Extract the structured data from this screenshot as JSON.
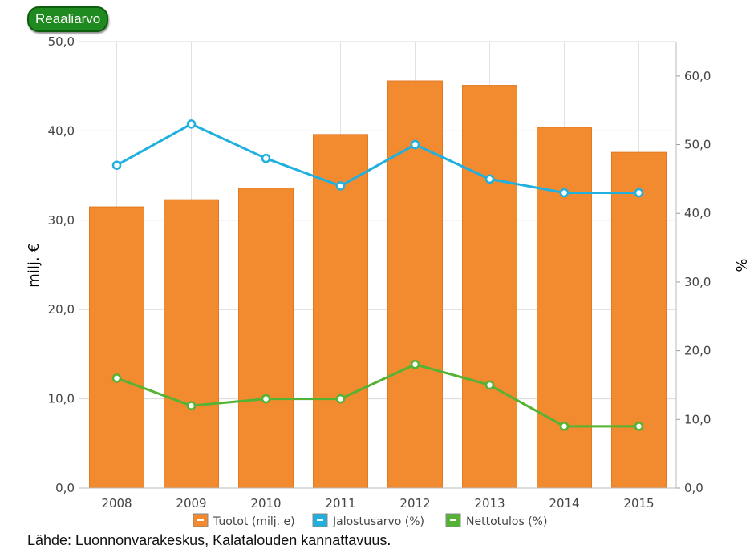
{
  "toggle_label": "Reaaliarvo",
  "source_text": "Lähde: Luonnonvarakeskus, Kalatalouden kannattavuus.",
  "chart_data": {
    "type": "bar",
    "categories": [
      "2008",
      "2009",
      "2010",
      "2011",
      "2012",
      "2013",
      "2014",
      "2015"
    ],
    "series": [
      {
        "name": "Tuotot (milj. e)",
        "type": "bar",
        "axis": "left",
        "color": "#f28a2f",
        "values": [
          31.5,
          32.3,
          33.6,
          39.6,
          45.6,
          45.1,
          40.4,
          37.6
        ]
      },
      {
        "name": "Jalostusarvo (%)",
        "type": "line",
        "axis": "right",
        "color": "#1fb0e0",
        "values": [
          47,
          53,
          48,
          44,
          50,
          45,
          43,
          43
        ]
      },
      {
        "name": "Nettotulos (%)",
        "type": "line",
        "axis": "right",
        "color": "#55b333",
        "values": [
          16,
          12,
          13,
          13,
          18,
          15,
          9,
          9
        ]
      }
    ],
    "ylabel_left": "milj. €",
    "ylabel_right": "%",
    "ylim_left": [
      0,
      50
    ],
    "ylim_right": [
      0,
      65
    ],
    "yticks_left": [
      "0,0",
      "10,0",
      "20,0",
      "30,0",
      "40,0",
      "50,0"
    ],
    "yticks_right": [
      "0,0",
      "10,0",
      "20,0",
      "30,0",
      "40,0",
      "50,0",
      "60,0"
    ],
    "grid": true,
    "legend_position": "bottom"
  }
}
